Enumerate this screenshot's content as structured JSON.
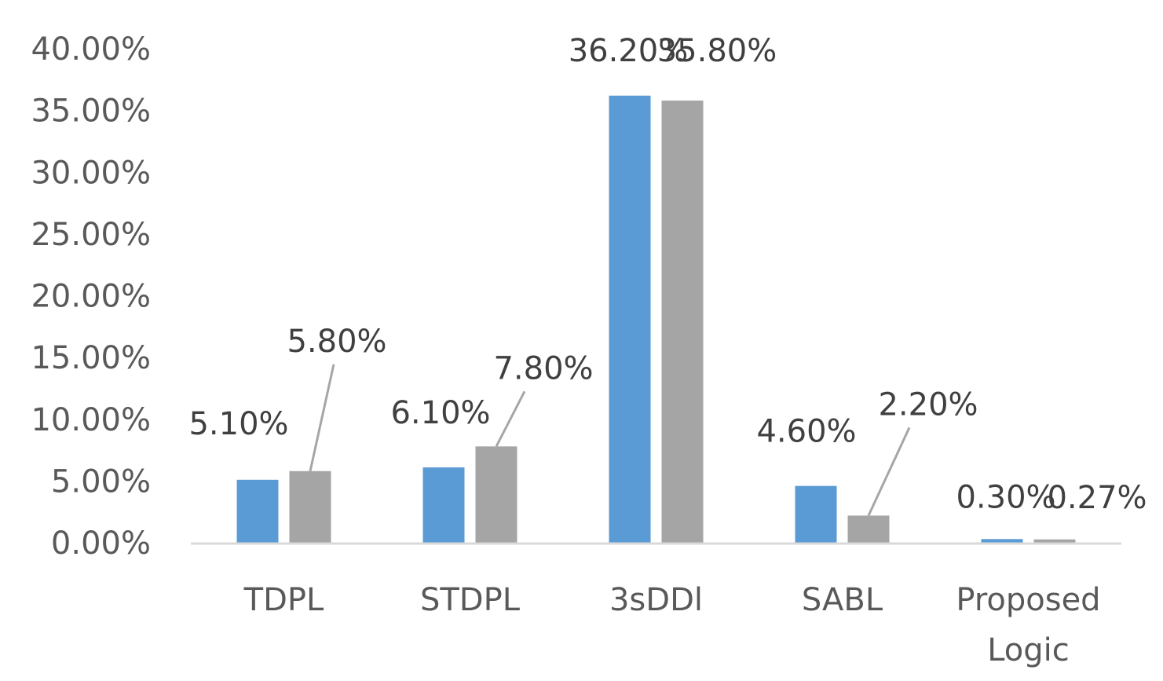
{
  "chart_data": {
    "type": "bar",
    "categories": [
      "TDPL",
      "STDPL",
      "3sDDl",
      "SABL",
      "Proposed Logic"
    ],
    "category_lines": [
      [
        "TDPL"
      ],
      [
        "STDPL"
      ],
      [
        "3sDDl"
      ],
      [
        "SABL"
      ],
      [
        "Proposed",
        "Logic"
      ]
    ],
    "series": [
      {
        "color": "#5b9bd5",
        "values": [
          5.1,
          6.1,
          36.2,
          4.6,
          0.3
        ],
        "labels": [
          "5.10%",
          "6.10%",
          "36.20%",
          "4.60%",
          "0.30%"
        ]
      },
      {
        "color": "#a5a5a5",
        "values": [
          5.8,
          7.8,
          35.8,
          2.2,
          0.27
        ],
        "labels": [
          "5.80%",
          "7.80%",
          "35.80%",
          "2.20%",
          "0.27%"
        ]
      }
    ],
    "ylim": [
      0,
      40
    ],
    "y_ticks": [
      "0.00%",
      "5.00%",
      "10.00%",
      "15.00%",
      "20.00%",
      "25.00%",
      "30.00%",
      "35.00%",
      "40.00%"
    ],
    "grid": false,
    "legend": "none"
  }
}
